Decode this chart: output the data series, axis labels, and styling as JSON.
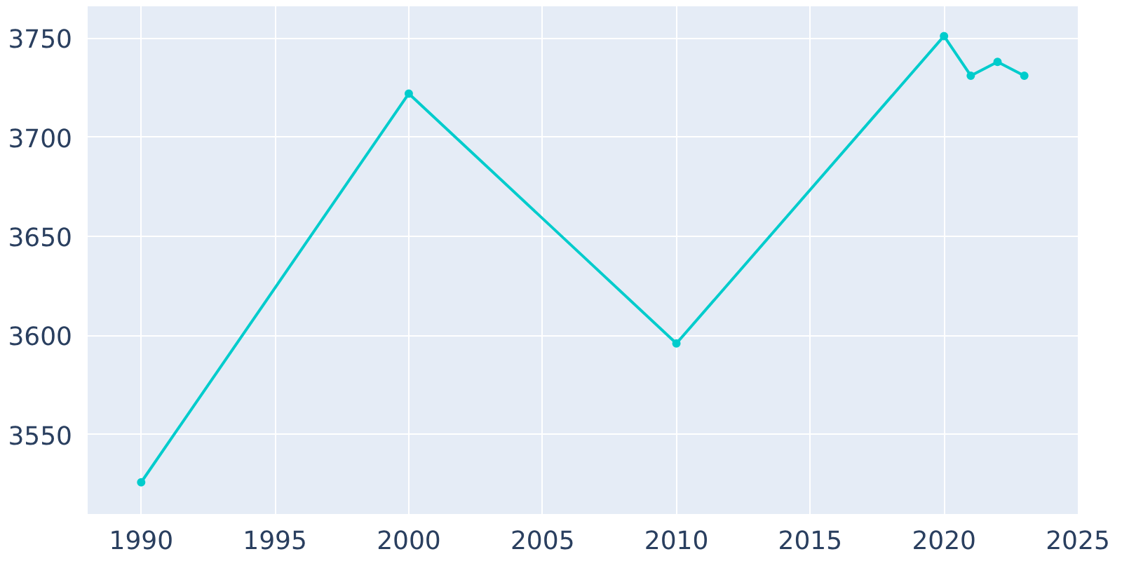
{
  "chart_data": {
    "type": "line",
    "x": [
      1990,
      2000,
      2010,
      2020,
      2021,
      2022,
      2023
    ],
    "series": [
      {
        "color": "#00cccc",
        "values": [
          3526,
          3722,
          3596,
          3751,
          3731,
          3738,
          3731
        ]
      }
    ],
    "xlim": [
      1988,
      2025
    ],
    "xticks": [
      1990,
      1995,
      2000,
      2005,
      2010,
      2015,
      2020,
      2025
    ],
    "ylim": [
      3510,
      3766
    ],
    "yticks": [
      3550,
      3600,
      3650,
      3700,
      3750
    ],
    "grid": true,
    "marker": "circle",
    "line_style": "solid"
  }
}
